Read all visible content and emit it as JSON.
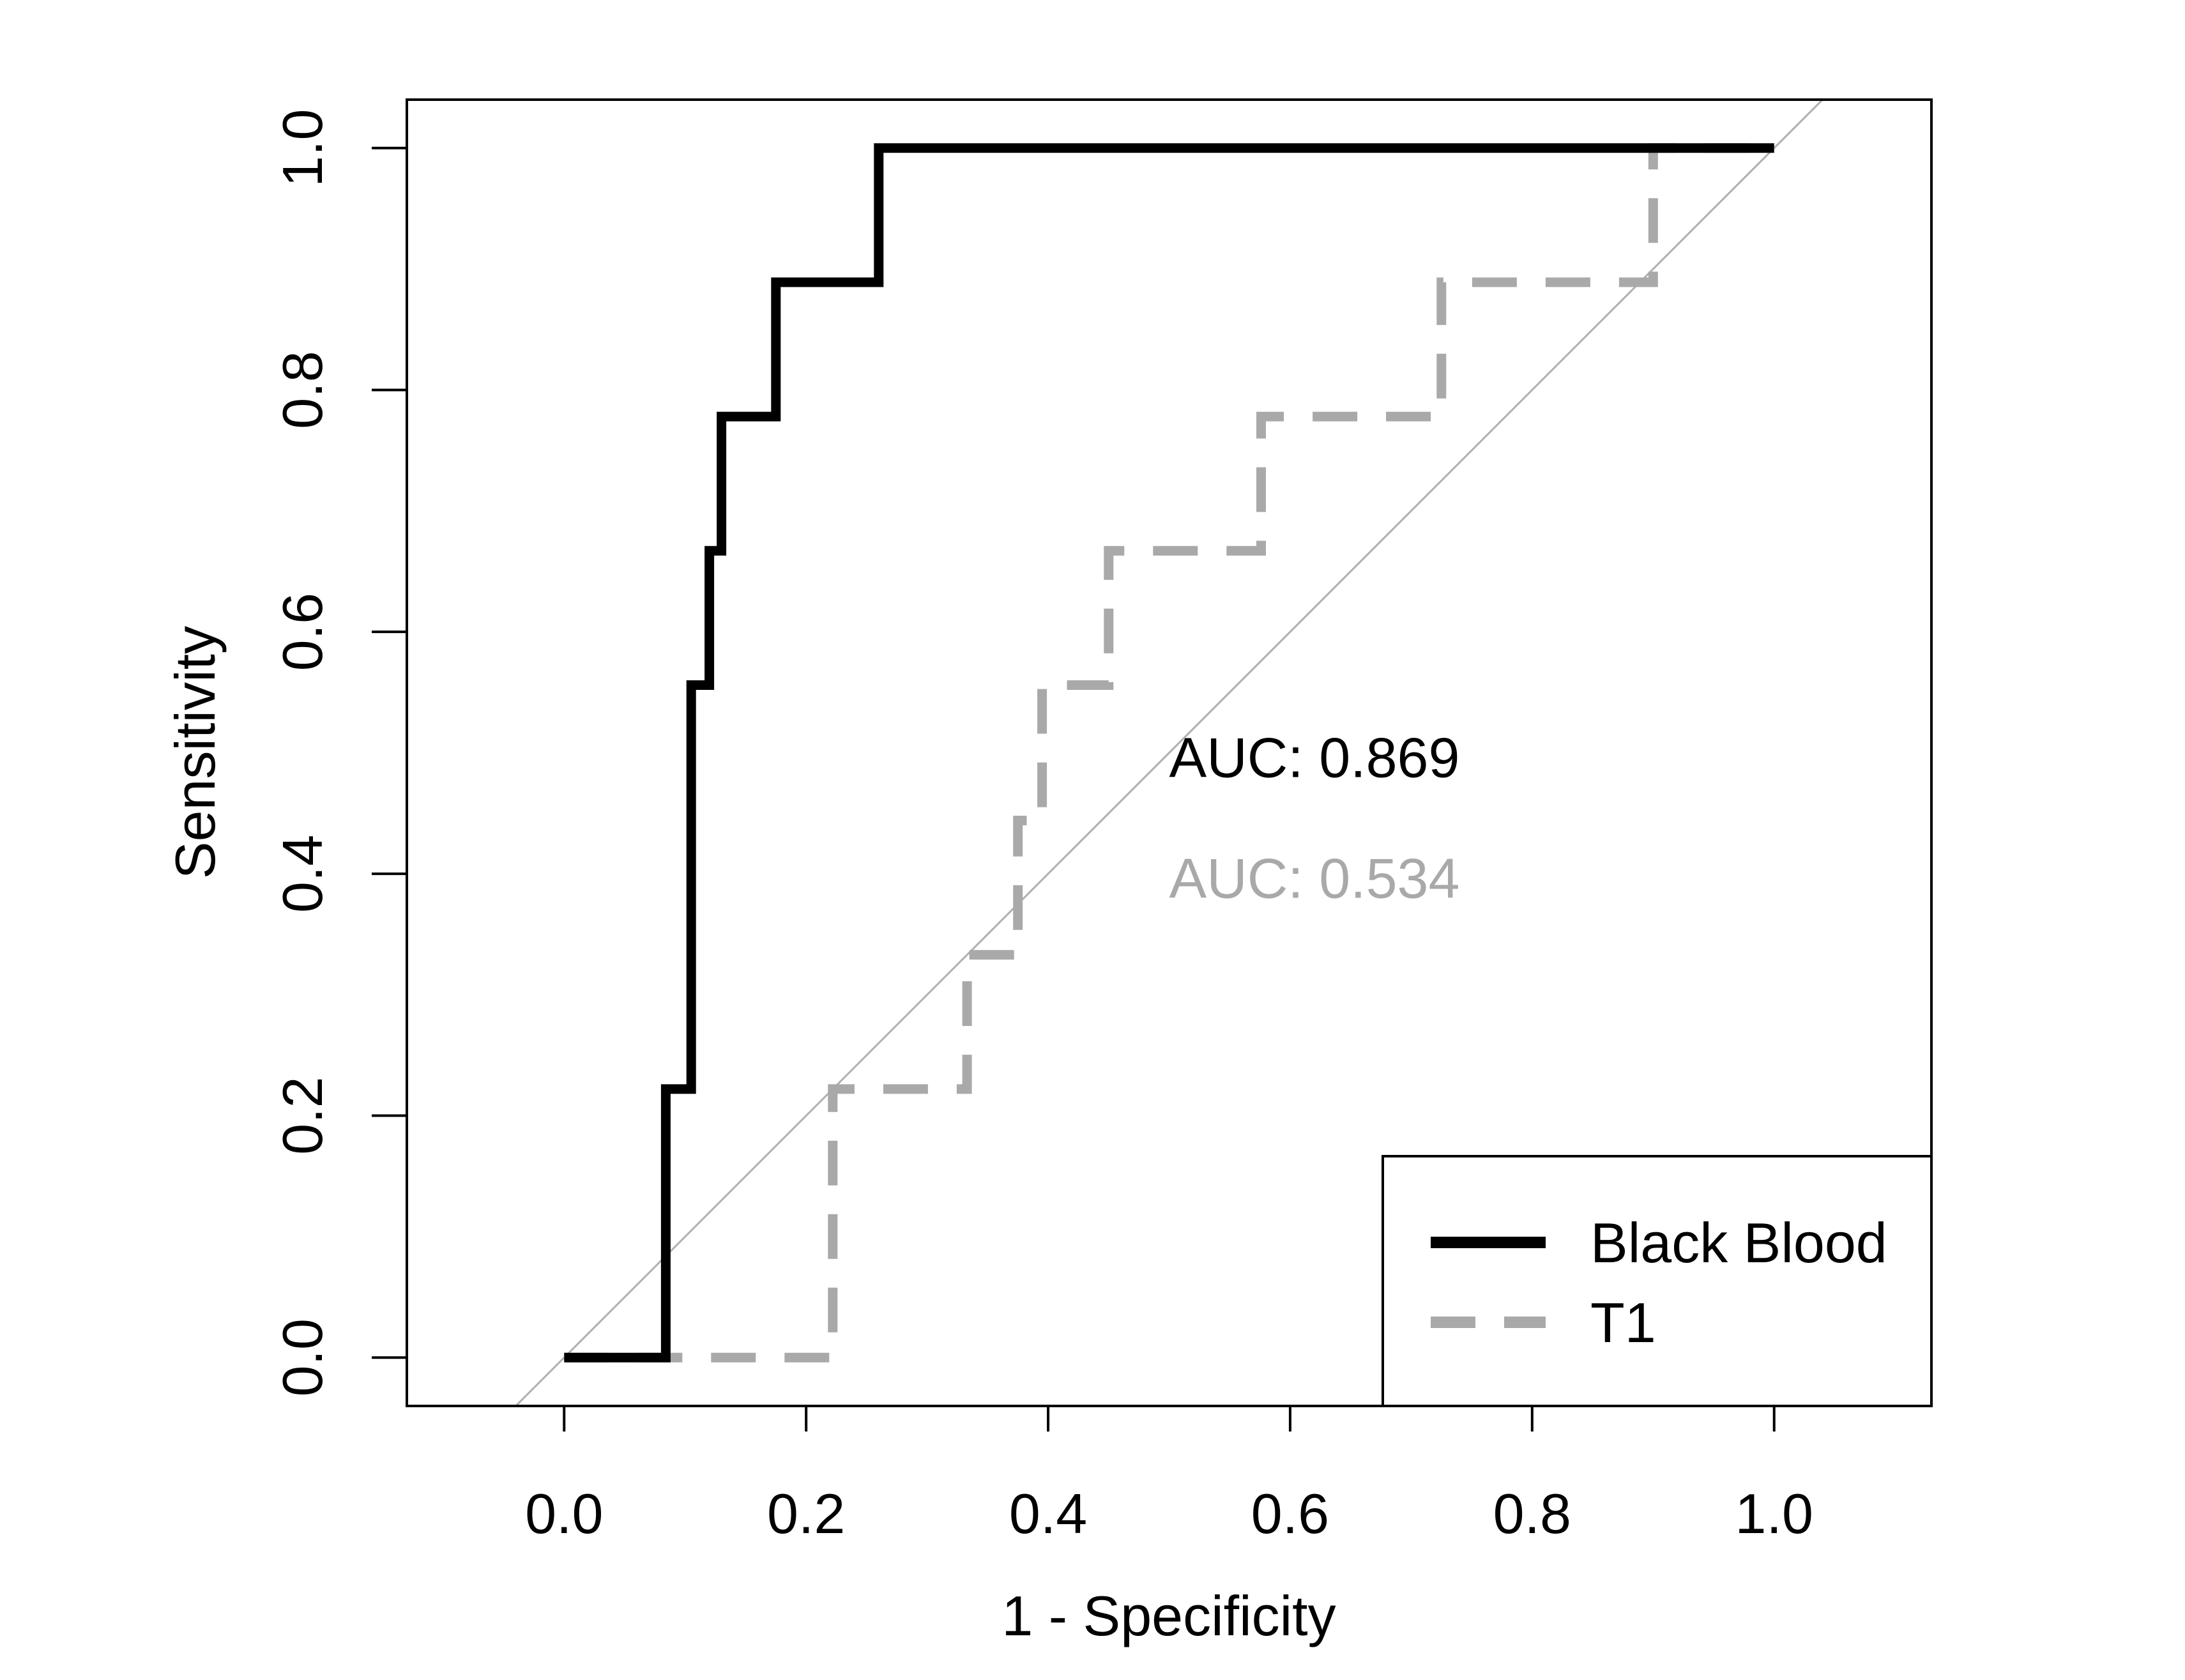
{
  "chart_data": {
    "type": "line",
    "xlabel": "1 - Specificity",
    "ylabel": "Sensitivity",
    "xlim": [
      -0.13,
      1.13
    ],
    "ylim": [
      -0.04,
      1.04
    ],
    "x_ticks": [
      0.0,
      0.2,
      0.4,
      0.6,
      0.8,
      1.0
    ],
    "x_tick_labels": [
      "0.0",
      "0.2",
      "0.4",
      "0.6",
      "0.8",
      "1.0"
    ],
    "y_ticks": [
      0.0,
      0.2,
      0.4,
      0.6,
      0.8,
      1.0
    ],
    "y_tick_labels": [
      "0.0",
      "0.2",
      "0.4",
      "0.6",
      "0.8",
      "1.0"
    ],
    "reference_line": {
      "from": [
        0,
        0
      ],
      "to": [
        1,
        1
      ],
      "color": "#b0b0b0"
    },
    "series": [
      {
        "name": "Black Blood",
        "color": "#000000",
        "style": "solid",
        "points": [
          [
            0.0,
            0.0
          ],
          [
            0.084,
            0.0
          ],
          [
            0.084,
            0.222
          ],
          [
            0.105,
            0.222
          ],
          [
            0.105,
            0.556
          ],
          [
            0.12,
            0.556
          ],
          [
            0.12,
            0.667
          ],
          [
            0.13,
            0.667
          ],
          [
            0.13,
            0.778
          ],
          [
            0.175,
            0.778
          ],
          [
            0.175,
            0.889
          ],
          [
            0.26,
            0.889
          ],
          [
            0.26,
            1.0
          ],
          [
            1.0,
            1.0
          ]
        ]
      },
      {
        "name": "T1",
        "color": "#a9a9a9",
        "style": "dashed",
        "points": [
          [
            0.0,
            0.0
          ],
          [
            0.222,
            0.0
          ],
          [
            0.222,
            0.222
          ],
          [
            0.333,
            0.222
          ],
          [
            0.333,
            0.333
          ],
          [
            0.375,
            0.333
          ],
          [
            0.375,
            0.444
          ],
          [
            0.395,
            0.444
          ],
          [
            0.395,
            0.556
          ],
          [
            0.45,
            0.556
          ],
          [
            0.45,
            0.667
          ],
          [
            0.576,
            0.667
          ],
          [
            0.576,
            0.778
          ],
          [
            0.725,
            0.778
          ],
          [
            0.725,
            0.889
          ],
          [
            0.9,
            0.889
          ],
          [
            0.9,
            1.0
          ],
          [
            1.0,
            1.0
          ]
        ]
      }
    ],
    "annotations": [
      {
        "text": "AUC: 0.869",
        "x": 0.5,
        "y": 0.48,
        "color": "#000000"
      },
      {
        "text": "AUC: 0.534",
        "x": 0.5,
        "y": 0.38,
        "color": "#a9a9a9"
      }
    ],
    "legend": {
      "position": "bottom-right",
      "entries": [
        {
          "label": "Black Blood",
          "color": "#000000",
          "style": "solid"
        },
        {
          "label": "T1",
          "color": "#a9a9a9",
          "style": "dashed"
        }
      ]
    }
  }
}
